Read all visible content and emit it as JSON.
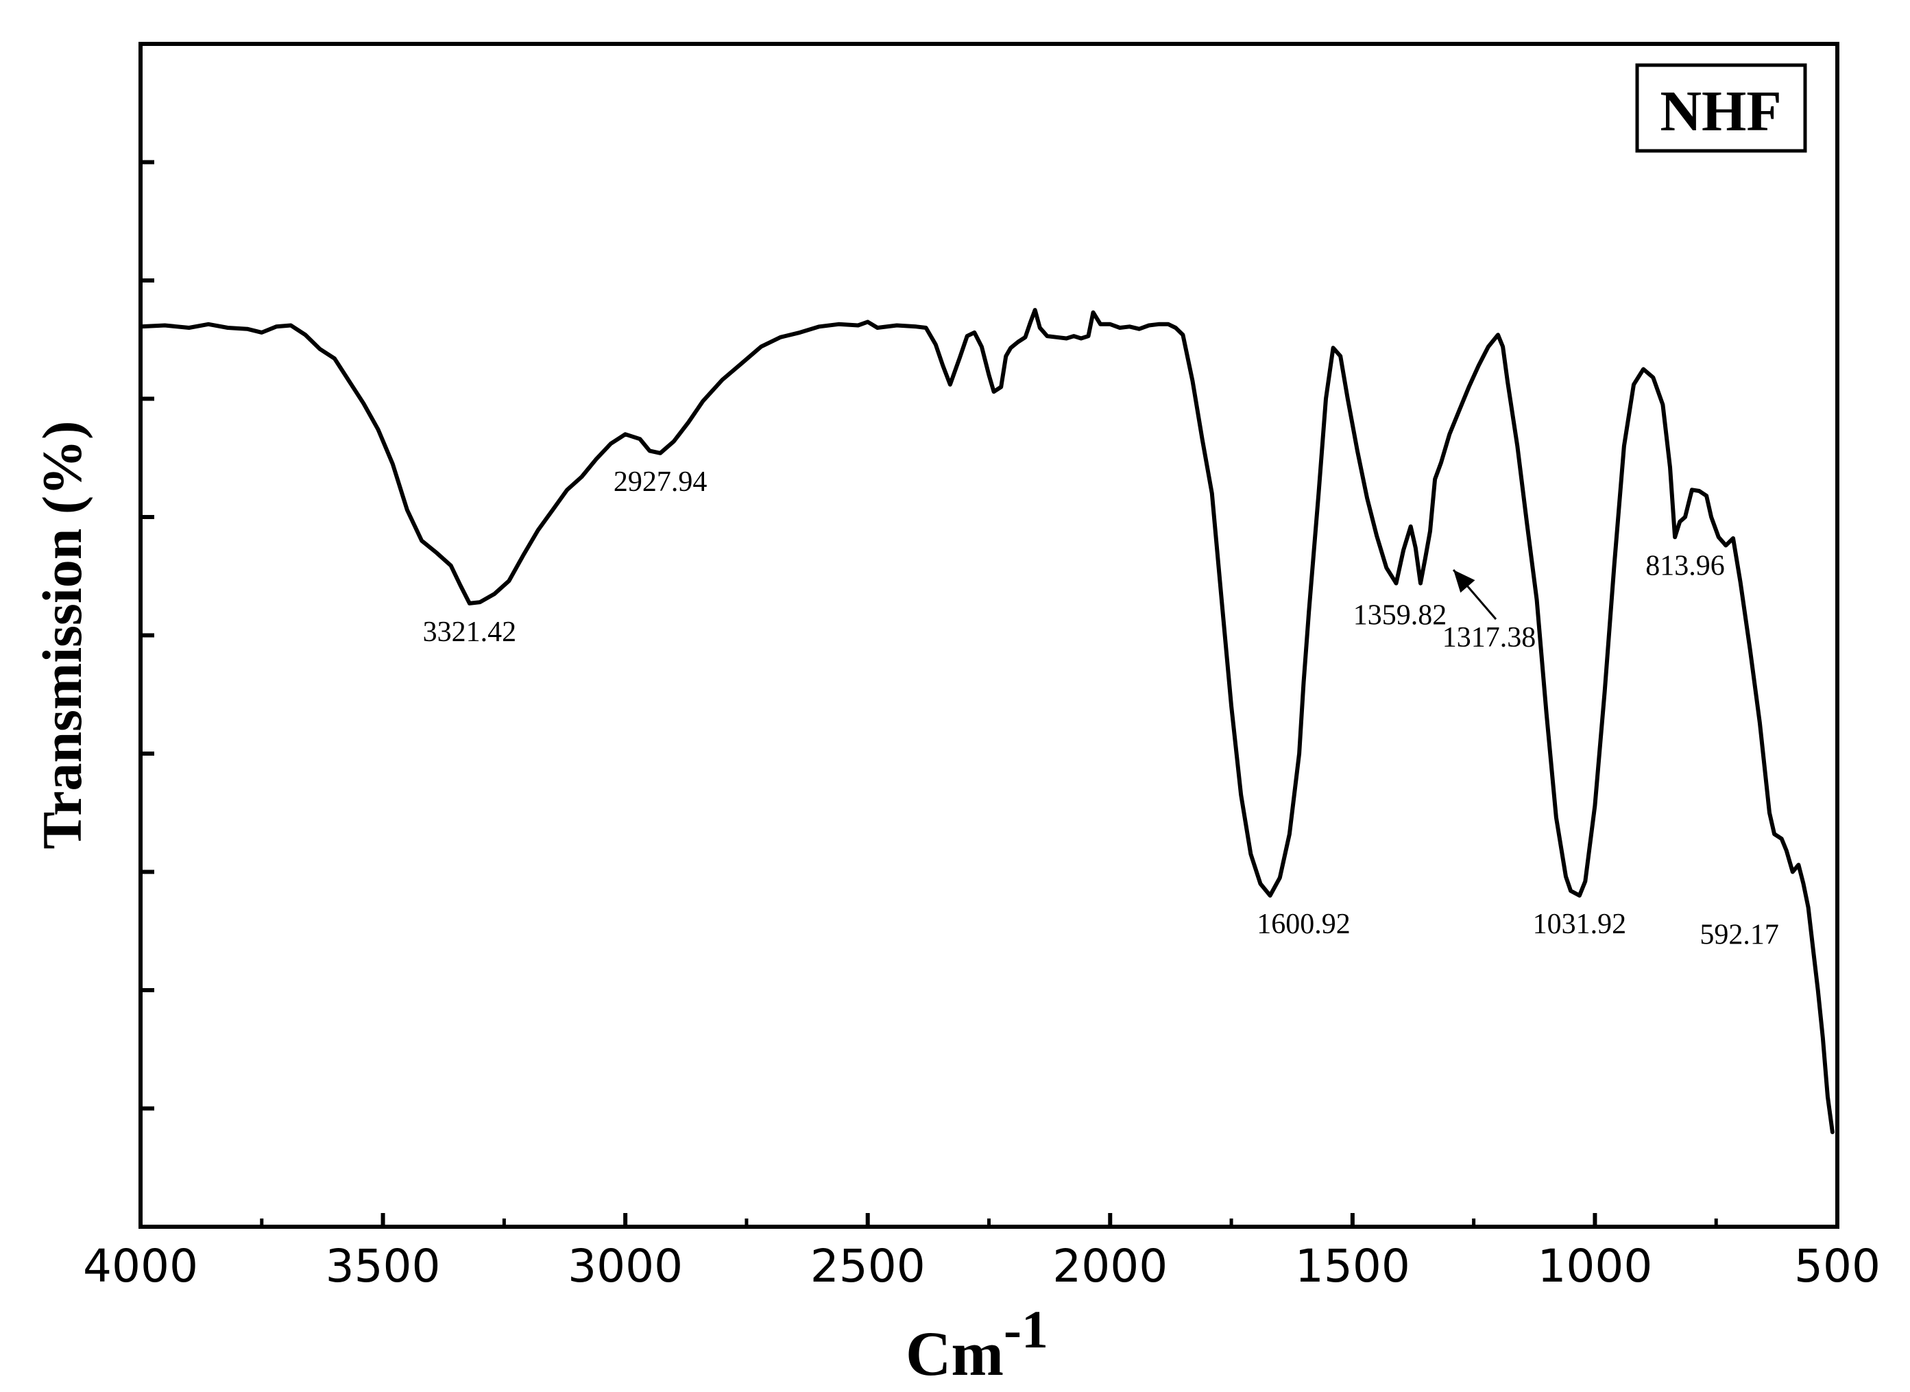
{
  "chart_data": {
    "type": "line",
    "title": "",
    "xlabel": "Cm",
    "xlabel_superscript": "-1",
    "ylabel": "Transmission (%)",
    "xlim": [
      4000,
      500
    ],
    "ylim": [
      0,
      100
    ],
    "x_reversed": true,
    "xticks": [
      4000,
      3500,
      3000,
      2500,
      2000,
      1500,
      1000,
      500
    ],
    "xtick_labels": [
      "4000",
      "3500",
      "3000",
      "2500",
      "2000",
      "1500",
      "1000",
      "500"
    ],
    "yticks_minor": [
      10,
      20,
      30,
      40,
      50,
      60,
      70,
      80,
      90
    ],
    "ytick_labels_shown": false,
    "grid": false,
    "legend": {
      "position": "top-right",
      "boxed": true
    },
    "series": [
      {
        "name": "NHF",
        "color": "#000000",
        "points": [
          [
            4000,
            76.1
          ],
          [
            3950,
            76.2
          ],
          [
            3900,
            76.0
          ],
          [
            3860,
            76.3
          ],
          [
            3820,
            76.0
          ],
          [
            3780,
            75.9
          ],
          [
            3750,
            75.6
          ],
          [
            3720,
            76.1
          ],
          [
            3690,
            76.2
          ],
          [
            3660,
            75.4
          ],
          [
            3630,
            74.2
          ],
          [
            3600,
            73.4
          ],
          [
            3570,
            71.5
          ],
          [
            3540,
            69.6
          ],
          [
            3510,
            67.4
          ],
          [
            3480,
            64.5
          ],
          [
            3450,
            60.6
          ],
          [
            3420,
            58.0
          ],
          [
            3390,
            57.0
          ],
          [
            3360,
            55.9
          ],
          [
            3340,
            54.2
          ],
          [
            3321.42,
            52.7
          ],
          [
            3300,
            52.8
          ],
          [
            3270,
            53.5
          ],
          [
            3240,
            54.6
          ],
          [
            3210,
            56.8
          ],
          [
            3180,
            58.9
          ],
          [
            3150,
            60.6
          ],
          [
            3120,
            62.3
          ],
          [
            3090,
            63.4
          ],
          [
            3060,
            64.9
          ],
          [
            3030,
            66.2
          ],
          [
            3000,
            67.0
          ],
          [
            2970,
            66.6
          ],
          [
            2950,
            65.6
          ],
          [
            2927.94,
            65.4
          ],
          [
            2900,
            66.4
          ],
          [
            2870,
            68.0
          ],
          [
            2840,
            69.8
          ],
          [
            2800,
            71.6
          ],
          [
            2760,
            73.0
          ],
          [
            2720,
            74.4
          ],
          [
            2680,
            75.2
          ],
          [
            2640,
            75.6
          ],
          [
            2600,
            76.1
          ],
          [
            2560,
            76.3
          ],
          [
            2520,
            76.2
          ],
          [
            2500,
            76.5
          ],
          [
            2480,
            76.0
          ],
          [
            2440,
            76.2
          ],
          [
            2400,
            76.1
          ],
          [
            2380,
            76.0
          ],
          [
            2360,
            74.6
          ],
          [
            2345,
            72.8
          ],
          [
            2330,
            71.2
          ],
          [
            2310,
            73.5
          ],
          [
            2295,
            75.3
          ],
          [
            2280,
            75.6
          ],
          [
            2265,
            74.4
          ],
          [
            2250,
            72.0
          ],
          [
            2240,
            70.6
          ],
          [
            2225,
            71.0
          ],
          [
            2215,
            73.6
          ],
          [
            2205,
            74.3
          ],
          [
            2190,
            74.8
          ],
          [
            2175,
            75.2
          ],
          [
            2165,
            76.4
          ],
          [
            2155,
            77.5
          ],
          [
            2145,
            76.0
          ],
          [
            2130,
            75.3
          ],
          [
            2110,
            75.2
          ],
          [
            2090,
            75.1
          ],
          [
            2075,
            75.3
          ],
          [
            2060,
            75.1
          ],
          [
            2045,
            75.3
          ],
          [
            2035,
            77.3
          ],
          [
            2020,
            76.3
          ],
          [
            2000,
            76.3
          ],
          [
            1980,
            76.0
          ],
          [
            1960,
            76.1
          ],
          [
            1940,
            75.9
          ],
          [
            1920,
            76.2
          ],
          [
            1900,
            76.3
          ],
          [
            1880,
            76.3
          ],
          [
            1865,
            76.0
          ],
          [
            1850,
            75.4
          ],
          [
            1830,
            71.5
          ],
          [
            1810,
            66.6
          ],
          [
            1790,
            62.0
          ],
          [
            1770,
            53.0
          ],
          [
            1750,
            44.0
          ],
          [
            1730,
            36.5
          ],
          [
            1710,
            31.5
          ],
          [
            1690,
            29.0
          ],
          [
            1670,
            28.0
          ],
          [
            1650,
            29.5
          ],
          [
            1630,
            33.2
          ],
          [
            1610,
            40.0
          ],
          [
            1600.92,
            46.0
          ],
          [
            1590,
            52.0
          ],
          [
            1570,
            62.0
          ],
          [
            1555,
            70.0
          ],
          [
            1540,
            74.3
          ],
          [
            1525,
            73.6
          ],
          [
            1510,
            70.0
          ],
          [
            1490,
            65.6
          ],
          [
            1470,
            61.6
          ],
          [
            1450,
            58.4
          ],
          [
            1430,
            55.7
          ],
          [
            1410,
            54.4
          ],
          [
            1395,
            57.2
          ],
          [
            1380,
            59.2
          ],
          [
            1370,
            57.4
          ],
          [
            1359.82,
            54.4
          ],
          [
            1350,
            56.5
          ],
          [
            1340,
            58.8
          ],
          [
            1330,
            63.2
          ],
          [
            1317.38,
            64.6
          ],
          [
            1300,
            67.0
          ],
          [
            1280,
            69.0
          ],
          [
            1260,
            71.0
          ],
          [
            1240,
            72.8
          ],
          [
            1220,
            74.4
          ],
          [
            1200,
            75.4
          ],
          [
            1190,
            74.4
          ],
          [
            1180,
            71.4
          ],
          [
            1160,
            66.0
          ],
          [
            1140,
            59.4
          ],
          [
            1120,
            53.0
          ],
          [
            1100,
            43.4
          ],
          [
            1080,
            34.6
          ],
          [
            1060,
            29.6
          ],
          [
            1050,
            28.4
          ],
          [
            1031.92,
            28.0
          ],
          [
            1020,
            29.2
          ],
          [
            1000,
            35.6
          ],
          [
            980,
            45.2
          ],
          [
            960,
            56.0
          ],
          [
            940,
            66.0
          ],
          [
            920,
            71.2
          ],
          [
            900,
            72.5
          ],
          [
            880,
            71.8
          ],
          [
            860,
            69.5
          ],
          [
            845,
            64.2
          ],
          [
            835,
            58.3
          ],
          [
            825,
            59.6
          ],
          [
            813.96,
            60.0
          ],
          [
            800,
            62.3
          ],
          [
            785,
            62.2
          ],
          [
            770,
            61.8
          ],
          [
            760,
            60.0
          ],
          [
            745,
            58.3
          ],
          [
            730,
            57.6
          ],
          [
            715,
            58.2
          ],
          [
            700,
            54.5
          ],
          [
            680,
            48.8
          ],
          [
            660,
            42.6
          ],
          [
            640,
            35.0
          ],
          [
            630,
            33.2
          ],
          [
            615,
            32.8
          ],
          [
            605,
            31.8
          ],
          [
            592.17,
            30.0
          ],
          [
            580,
            30.6
          ],
          [
            570,
            29.0
          ],
          [
            560,
            27.0
          ],
          [
            550,
            23.5
          ],
          [
            540,
            20.0
          ],
          [
            530,
            16.0
          ],
          [
            520,
            11.0
          ],
          [
            510,
            8.0
          ]
        ]
      }
    ],
    "annotations": [
      {
        "text": "3321.42",
        "x": 3321.42,
        "y": 52.7,
        "placement": "below"
      },
      {
        "text": "2927.94",
        "x": 2927.94,
        "y": 65.4,
        "placement": "below"
      },
      {
        "text": "1600.92",
        "x": 1600.92,
        "y": 28.0,
        "placement": "below"
      },
      {
        "text": "1359.82",
        "x": 1359.82,
        "y": 54.4,
        "placement": "below-left"
      },
      {
        "text": "1317.38",
        "x": 1317.38,
        "y": 56.0,
        "placement": "below-right",
        "arrow": true
      },
      {
        "text": "1031.92",
        "x": 1031.92,
        "y": 28.0,
        "placement": "below"
      },
      {
        "text": "813.96",
        "x": 813.96,
        "y": 58.3,
        "placement": "below"
      },
      {
        "text": "592.17",
        "x": 592.17,
        "y": 30.0,
        "placement": "left"
      }
    ]
  }
}
